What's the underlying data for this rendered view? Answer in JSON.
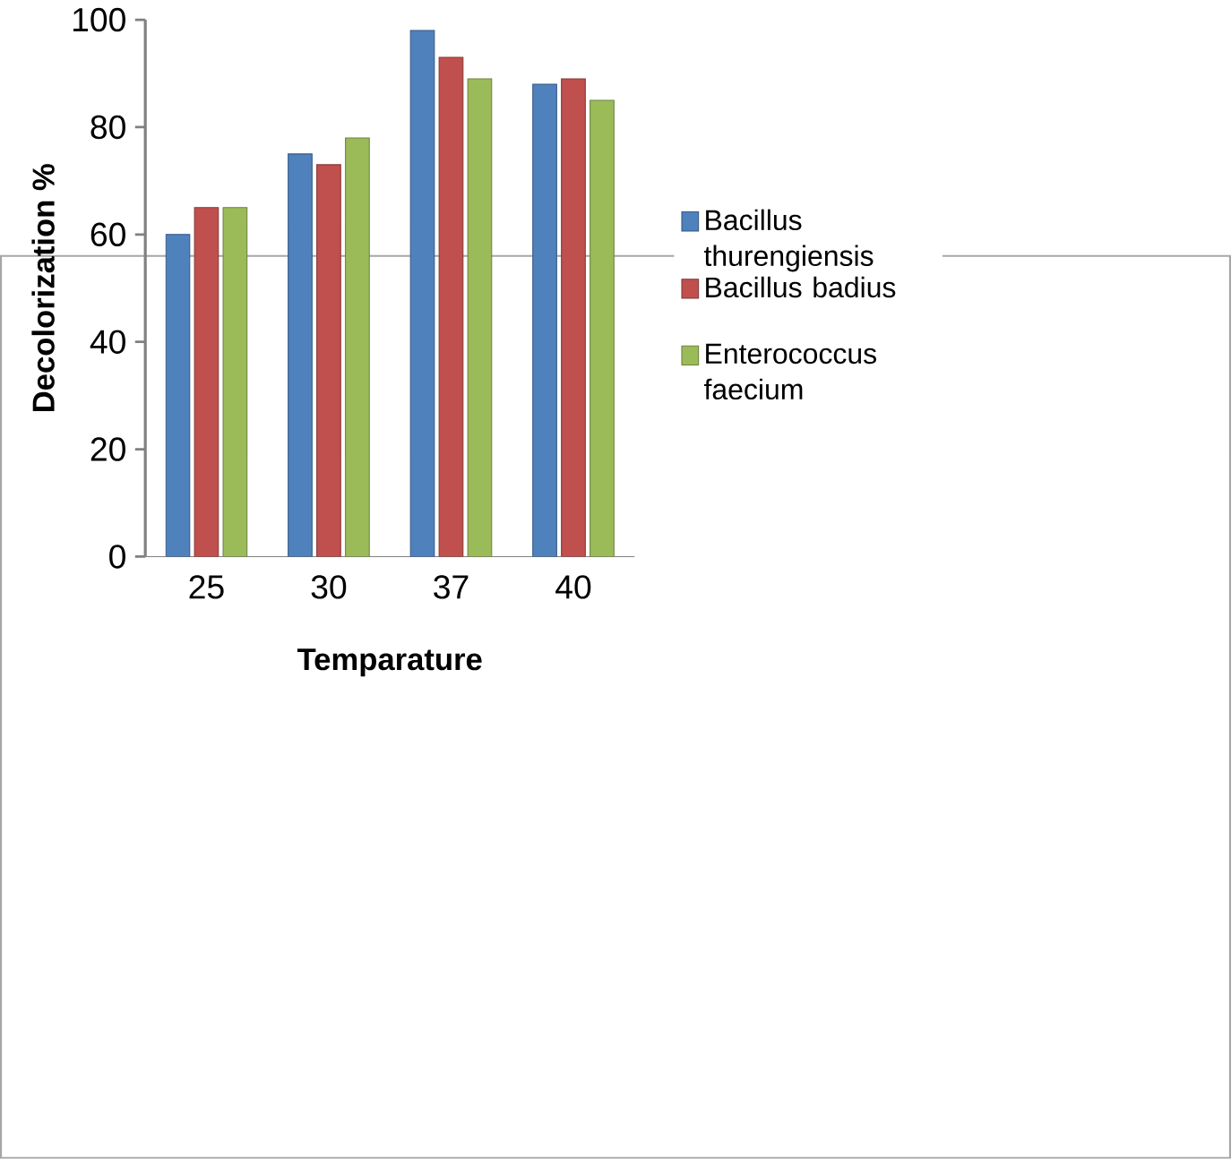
{
  "chart_data": {
    "type": "bar",
    "xlabel": "Temparature",
    "ylabel": "Decolorization %",
    "categories": [
      "25",
      "30",
      "37",
      "40"
    ],
    "series": [
      {
        "name": "Bacillus thurengiensis",
        "color": "#4f81bd",
        "values": [
          60,
          75,
          98,
          88
        ]
      },
      {
        "name": "Bacillus badius",
        "color": "#c0504d",
        "values": [
          65,
          73,
          93,
          89
        ]
      },
      {
        "name": "Enterococcus faecium",
        "color": "#9bbb59",
        "values": [
          65,
          78,
          89,
          85
        ]
      }
    ],
    "ylim": [
      0,
      100
    ],
    "yticks": [
      0,
      20,
      40,
      60,
      80,
      100
    ],
    "grid": false,
    "legend": "right"
  }
}
